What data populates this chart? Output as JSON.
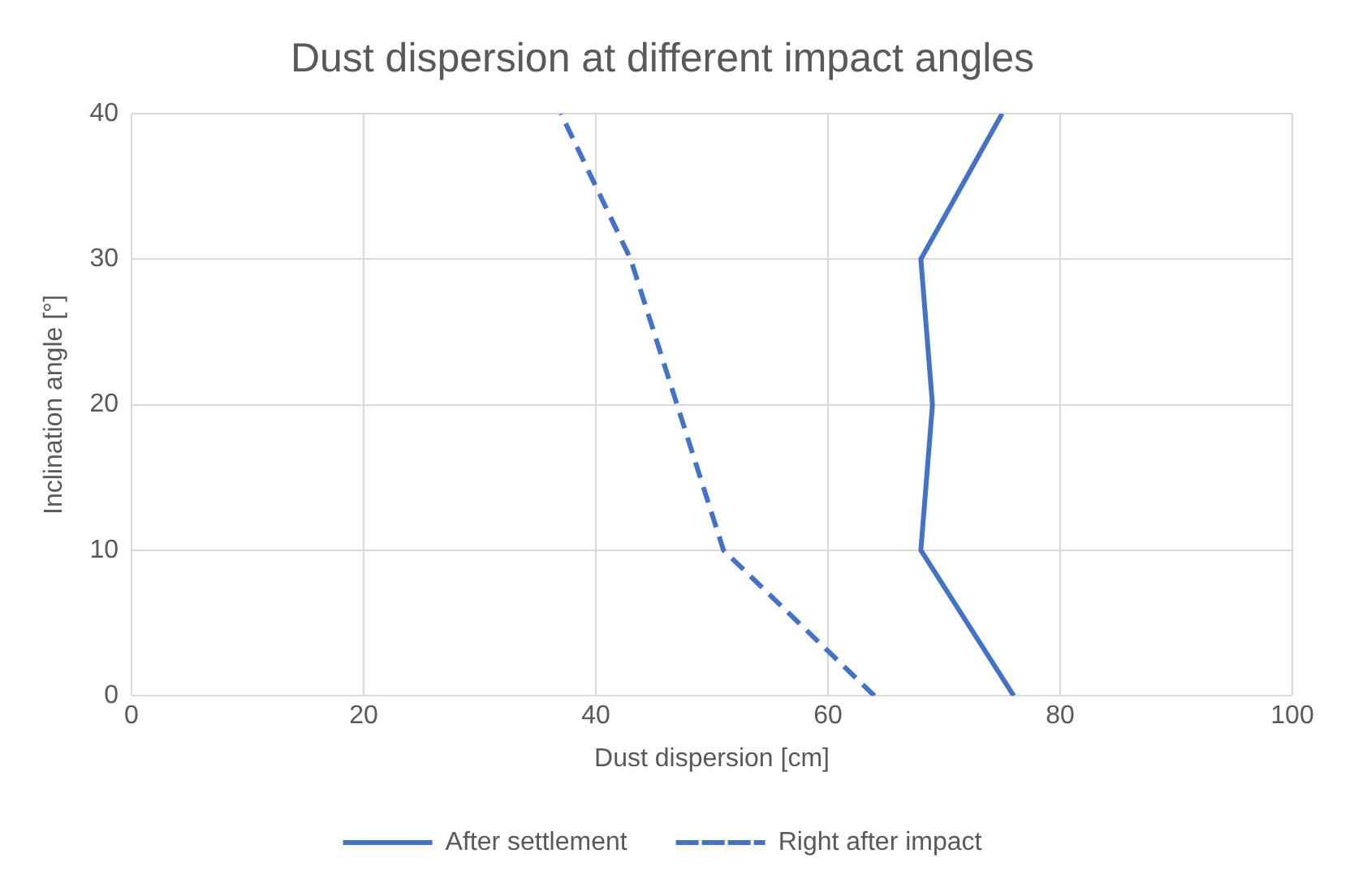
{
  "chart_data": {
    "type": "line",
    "title": "Dust dispersion at different impact angles",
    "xlabel": "Dust dispersion [cm]",
    "ylabel": "Inclination angle [°]",
    "xlim": [
      0,
      100
    ],
    "xticks": [
      0,
      20,
      40,
      60,
      80,
      100
    ],
    "ylim": [
      0,
      40
    ],
    "yticks": [
      0,
      10,
      20,
      30,
      40
    ],
    "grid": true,
    "legend": "bottom",
    "marker": "none",
    "series": [
      {
        "name": "After settlement",
        "color": "#4472c4",
        "line_style": "solid",
        "x": [
          76,
          68,
          69,
          68,
          75
        ],
        "values": [
          0,
          10,
          20,
          30,
          40
        ]
      },
      {
        "name": "Right after impact",
        "color": "#4472c4",
        "line_style": "dashed",
        "x": [
          64,
          51,
          47,
          43,
          37
        ],
        "values": [
          0,
          10,
          20,
          30,
          40
        ]
      }
    ]
  }
}
